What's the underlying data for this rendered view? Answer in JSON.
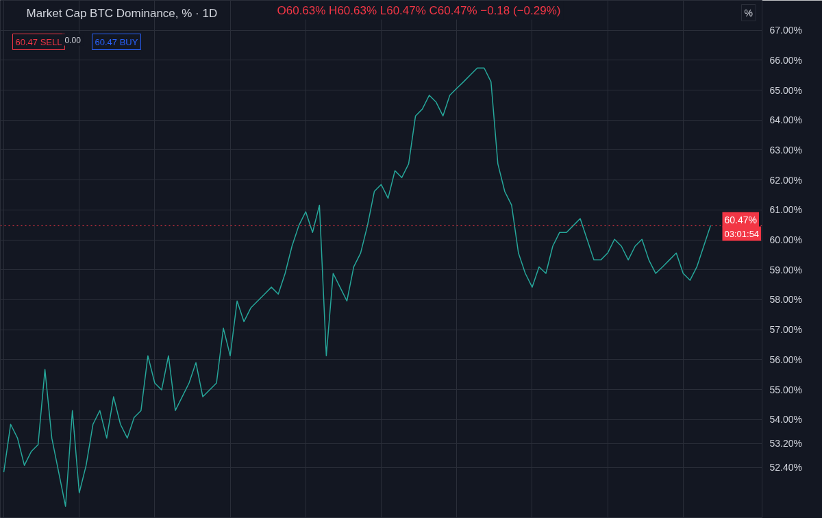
{
  "chart_data": {
    "type": "line",
    "title": "Market Cap BTC Dominance, % · 1D",
    "categories": [
      null,
      null,
      null,
      null,
      null,
      null,
      null,
      null,
      null,
      null,
      null,
      null,
      null,
      null,
      null,
      null,
      null,
      null,
      null,
      null,
      null,
      null,
      null,
      null,
      null,
      null,
      null,
      null,
      null,
      null,
      null,
      null,
      null,
      null,
      null,
      null,
      null,
      null,
      null,
      null,
      null,
      null,
      null,
      null,
      null,
      null,
      null,
      null,
      null,
      null,
      null,
      null,
      null,
      null,
      null,
      null,
      null,
      null,
      null,
      null,
      null,
      null,
      null,
      null,
      null,
      null,
      null,
      null,
      null,
      null,
      null,
      null,
      null,
      null,
      null,
      null,
      null,
      null,
      null,
      null,
      null,
      null,
      null,
      null,
      null,
      null,
      null,
      null,
      null,
      null,
      null,
      null,
      null,
      null,
      null,
      null,
      null,
      null,
      null,
      null,
      null,
      null,
      null,
      null
    ],
    "series": [
      {
        "color": "#26a69a",
        "values": [
          52.24,
          53.84,
          53.38,
          52.47,
          52.93,
          53.16,
          55.67,
          53.38,
          52.24,
          51.1,
          54.3,
          51.55,
          52.47,
          53.84,
          54.3,
          53.38,
          54.76,
          53.84,
          53.38,
          54.07,
          54.3,
          56.13,
          55.22,
          54.99,
          56.13,
          54.3,
          54.76,
          55.22,
          55.9,
          54.76,
          54.99,
          55.22,
          57.05,
          56.13,
          57.96,
          57.27,
          57.73,
          57.96,
          58.19,
          58.42,
          58.19,
          58.88,
          59.79,
          60.48,
          60.94,
          60.25,
          61.16,
          56.13,
          58.88,
          58.42,
          57.96,
          59.1,
          59.56,
          60.48,
          61.62,
          61.85,
          61.39,
          62.31,
          62.08,
          62.54,
          64.14,
          64.37,
          64.83,
          64.6,
          64.14,
          64.83,
          65.06,
          65.28,
          65.51,
          65.74,
          65.74,
          65.28,
          62.54,
          61.62,
          61.16,
          59.56,
          58.88,
          58.42,
          59.1,
          58.88,
          59.79,
          60.25,
          60.25,
          60.48,
          60.71,
          60.02,
          59.33,
          59.33,
          59.56,
          60.02,
          59.79,
          59.33,
          59.79,
          60.02,
          59.33,
          58.88,
          59.1,
          59.33,
          59.56,
          58.88,
          58.65,
          59.1,
          59.79,
          60.48
        ]
      }
    ],
    "ylim": [
      50.7,
      68.0
    ],
    "yticks": [
      {
        "value": 52.4,
        "label": "52.40%"
      },
      {
        "value": 53.2,
        "label": "53.20%"
      },
      {
        "value": 54,
        "label": "54.00%"
      },
      {
        "value": 55,
        "label": "55.00%"
      },
      {
        "value": 56,
        "label": "56.00%"
      },
      {
        "value": 57,
        "label": "57.00%"
      },
      {
        "value": 58,
        "label": "58.00%"
      },
      {
        "value": 59,
        "label": "59.00%"
      },
      {
        "value": 60,
        "label": "60.00%"
      },
      {
        "value": 61,
        "label": "61.00%"
      },
      {
        "value": 62,
        "label": "62.00%"
      },
      {
        "value": 63,
        "label": "63.00%"
      },
      {
        "value": 64,
        "label": "64.00%"
      },
      {
        "value": 65,
        "label": "65.00%"
      },
      {
        "value": 66,
        "label": "66.00%"
      },
      {
        "value": 67,
        "label": "67.00%"
      }
    ],
    "ref_lines": [
      {
        "axis": "y",
        "value": 60.47,
        "label": "60.47%",
        "color": "#f23645",
        "line_style": "dotted"
      }
    ],
    "annotations": [
      "O60.63% H60.63% L60.47% C60.47% −0.18 (−0.29%)",
      "60.47 SELL",
      "0.00",
      "60.47 BUY",
      "03:01:54",
      "%"
    ],
    "grid": true,
    "tick_labels": "y",
    "line_style": "solid",
    "marker": "none"
  }
}
